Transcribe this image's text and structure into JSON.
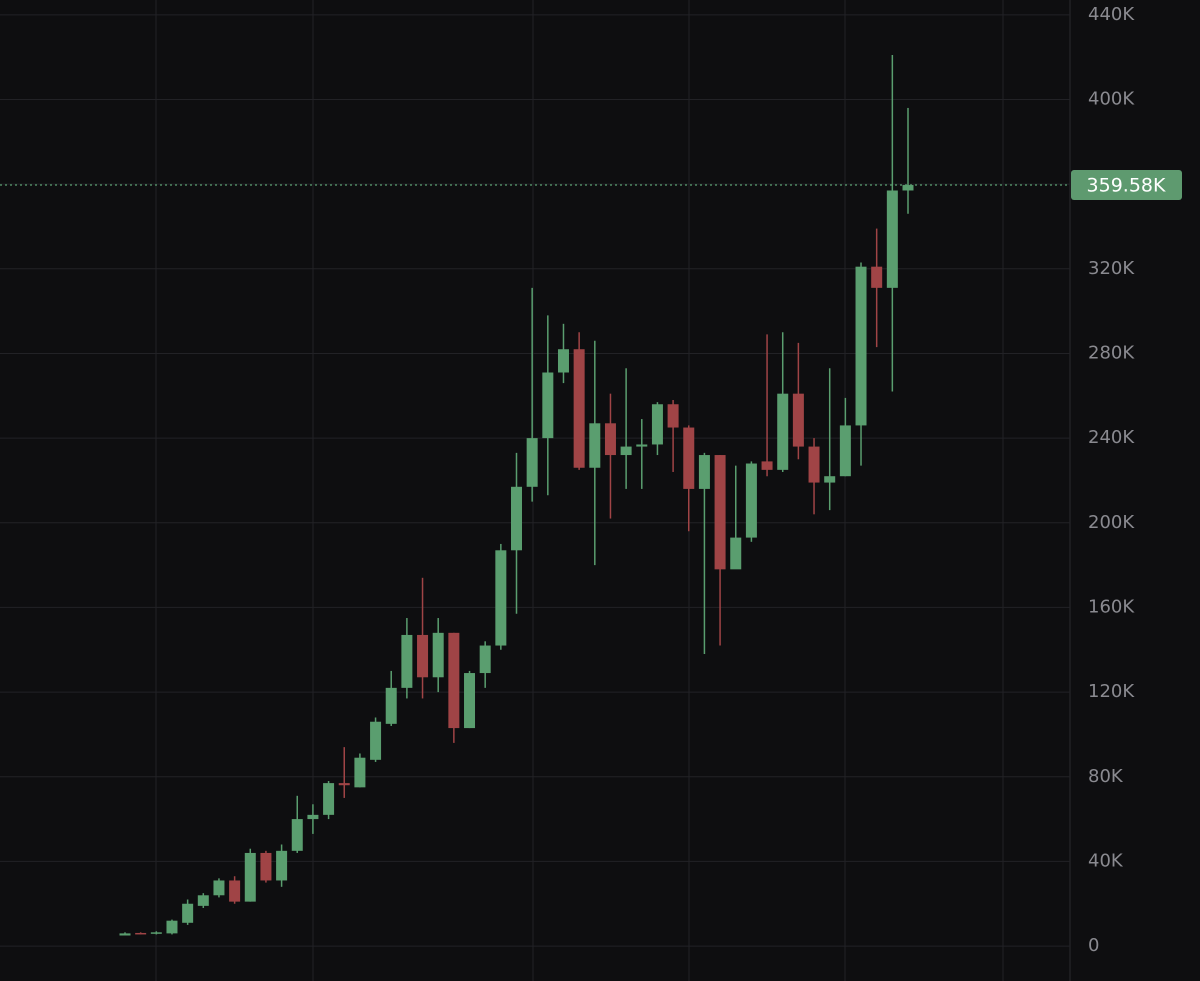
{
  "chart_data": {
    "type": "candlestick",
    "up_color": "#5a9e6f",
    "down_color": "#a04446",
    "grid": true,
    "ylim": [
      -16500,
      447000
    ],
    "yticks": [
      {
        "value": 0,
        "label": "0"
      },
      {
        "value": 40000,
        "label": "40K"
      },
      {
        "value": 80000,
        "label": "80K"
      },
      {
        "value": 120000,
        "label": "120K"
      },
      {
        "value": 160000,
        "label": "160K"
      },
      {
        "value": 200000,
        "label": "200K"
      },
      {
        "value": 240000,
        "label": "240K"
      },
      {
        "value": 280000,
        "label": "280K"
      },
      {
        "value": 320000,
        "label": "320K"
      },
      {
        "value": 360000,
        "label": "360K"
      },
      {
        "value": 400000,
        "label": "400K"
      },
      {
        "value": 440000,
        "label": "440K"
      }
    ],
    "last_price": {
      "value": 359580,
      "label": "359.58K"
    },
    "open": [
      5000,
      6200,
      5800,
      6000,
      11000,
      19000,
      24000,
      31000,
      21000,
      44000,
      31000,
      45000,
      60000,
      62000,
      77000,
      75000,
      88000,
      105000,
      122000,
      147000,
      127000,
      148000,
      103000,
      129000,
      142000,
      187000,
      217000,
      240000,
      271000,
      282000,
      226000,
      247000,
      232000,
      236000,
      237000,
      256000,
      245000,
      216000,
      232000,
      178000,
      193000,
      229000,
      225000,
      261000,
      236000,
      219000,
      222000,
      246000,
      321000,
      311000,
      357000
    ],
    "high": [
      6500,
      6500,
      7000,
      12500,
      22000,
      25000,
      32000,
      33000,
      46000,
      45000,
      48000,
      71000,
      67000,
      78000,
      94000,
      91000,
      108000,
      130000,
      155000,
      174000,
      155000,
      148000,
      130000,
      144000,
      190000,
      233000,
      311000,
      298000,
      294000,
      290000,
      286000,
      261000,
      273000,
      249000,
      257000,
      258000,
      246000,
      233000,
      232000,
      227000,
      229000,
      289000,
      290000,
      285000,
      240000,
      273000,
      259000,
      323000,
      339000,
      421000,
      396000
    ],
    "low": [
      5000,
      5500,
      5500,
      5500,
      10000,
      18000,
      23000,
      20000,
      21000,
      30000,
      28000,
      44000,
      53000,
      60000,
      70000,
      75000,
      87000,
      104000,
      117000,
      117000,
      120000,
      96000,
      103000,
      122000,
      140000,
      157000,
      210000,
      213000,
      266000,
      225000,
      180000,
      202000,
      216000,
      216000,
      232000,
      224000,
      196000,
      138000,
      142000,
      179000,
      191000,
      222000,
      224000,
      230000,
      204000,
      206000,
      222000,
      227000,
      283000,
      262000,
      346000
    ],
    "close": [
      6000,
      5800,
      6500,
      12000,
      20000,
      24000,
      31000,
      21000,
      44000,
      31000,
      45000,
      60000,
      62000,
      77000,
      76000,
      89000,
      106000,
      122000,
      147000,
      127000,
      148000,
      103000,
      129000,
      142000,
      187000,
      217000,
      240000,
      271000,
      282000,
      226000,
      247000,
      232000,
      236000,
      237000,
      256000,
      245000,
      216000,
      232000,
      178000,
      193000,
      228000,
      225000,
      261000,
      236000,
      219000,
      222000,
      246000,
      321000,
      311000,
      357000,
      359580
    ]
  }
}
